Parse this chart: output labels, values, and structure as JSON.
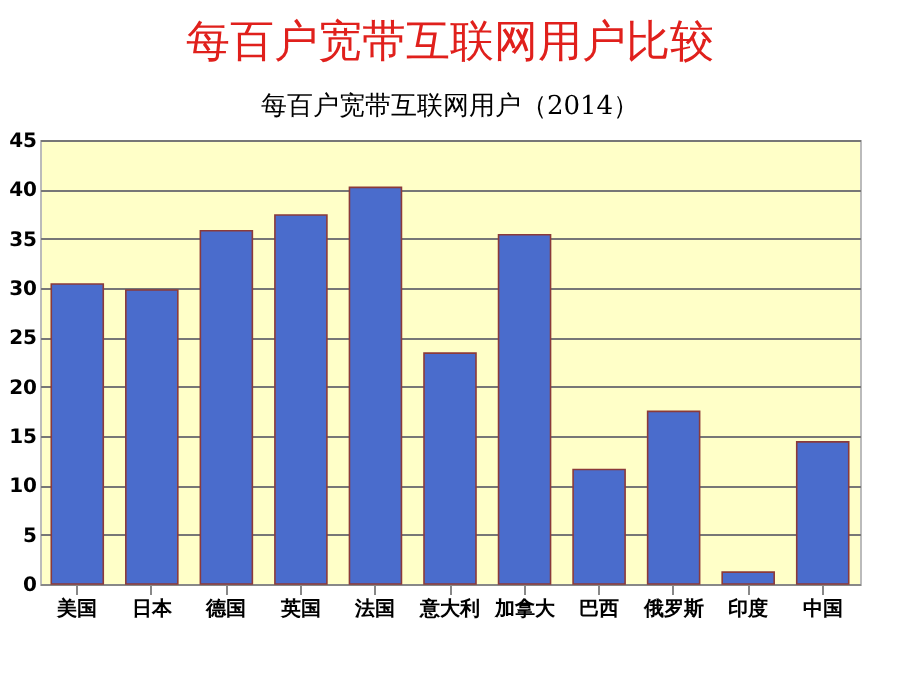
{
  "chart_data": {
    "type": "bar",
    "title": "每百户宽带互联网用户比较",
    "subtitle": "每百户宽带互联网用户（2014）",
    "categories": [
      "美国",
      "日本",
      "德国",
      "英国",
      "法国",
      "意大利",
      "加拿大",
      "巴西",
      "俄罗斯",
      "印度",
      "中国"
    ],
    "values": [
      30.4,
      29.8,
      35.8,
      37.4,
      40.2,
      23.4,
      35.4,
      11.6,
      17.5,
      1.2,
      14.4
    ],
    "color": "#4a6ccc",
    "ylim": [
      0,
      45
    ],
    "yticks": [
      0,
      5,
      10,
      15,
      20,
      25,
      30,
      35,
      40,
      45
    ],
    "grid": "y"
  }
}
